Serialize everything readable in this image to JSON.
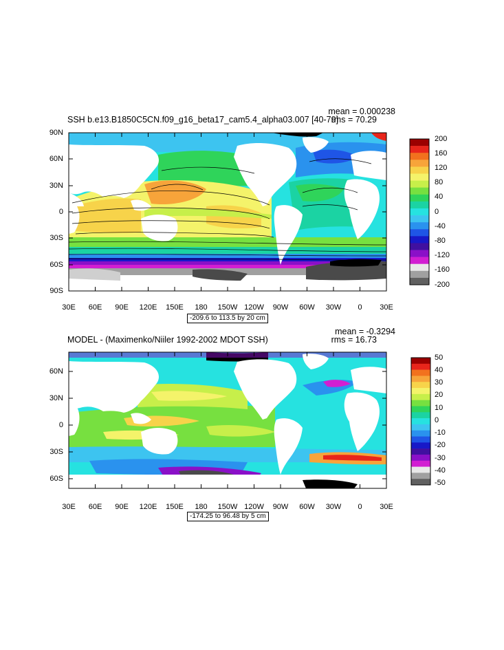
{
  "panels": [
    {
      "title": "SSH b.e13.B1850C5CN.f09_g16_beta17_cam5.4_alpha03.007 [40-79]",
      "mean": "mean = 0.000238",
      "rms": "rms = 70.29",
      "range": "-209.6 to 113.5 by 20 cm",
      "lat_ticks": [
        "90N",
        "60N",
        "30N",
        "0",
        "30S",
        "60S",
        "90S"
      ],
      "lon_ticks": [
        "30E",
        "60E",
        "90E",
        "120E",
        "150E",
        "180",
        "150W",
        "120W",
        "90W",
        "60W",
        "30W",
        "0",
        "30E"
      ],
      "colorbar_labels": [
        "200",
        "160",
        "120",
        "80",
        "40",
        "0",
        "-40",
        "-80",
        "-120",
        "-160",
        "-200"
      ]
    },
    {
      "title": "MODEL - (Maximenko/Niiler 1992-2002 MDOT SSH)",
      "mean": "mean = -0.3294",
      "rms": "rms = 16.73",
      "range": "-174.25 to 96.48 by 5 cm",
      "lat_ticks": [
        "60N",
        "30N",
        "0",
        "30S",
        "60S"
      ],
      "lon_ticks": [
        "30E",
        "60E",
        "90E",
        "120E",
        "150E",
        "180",
        "150W",
        "120W",
        "90W",
        "60W",
        "30W",
        "0",
        "30E"
      ],
      "colorbar_labels": [
        "50",
        "40",
        "30",
        "20",
        "10",
        "0",
        "-10",
        "-20",
        "-30",
        "-40",
        "-50"
      ]
    }
  ],
  "colorbar_colors": [
    "#9b0000",
    "#e8251b",
    "#f2711e",
    "#f7a43a",
    "#f7d34a",
    "#f4f36a",
    "#c7ef4a",
    "#77e040",
    "#2fd45a",
    "#1bd3a3",
    "#26e2e0",
    "#3dc4f0",
    "#2a92ee",
    "#1f55e6",
    "#1818c8",
    "#4010a0",
    "#8a10c8",
    "#d21ed2",
    "#e8e8e8",
    "#a0a0a0",
    "#606060"
  ],
  "map_colors": {
    "land": "#ffffff",
    "ice_dark": "#4a4a4a",
    "ice_light": "#cfcfcf"
  }
}
